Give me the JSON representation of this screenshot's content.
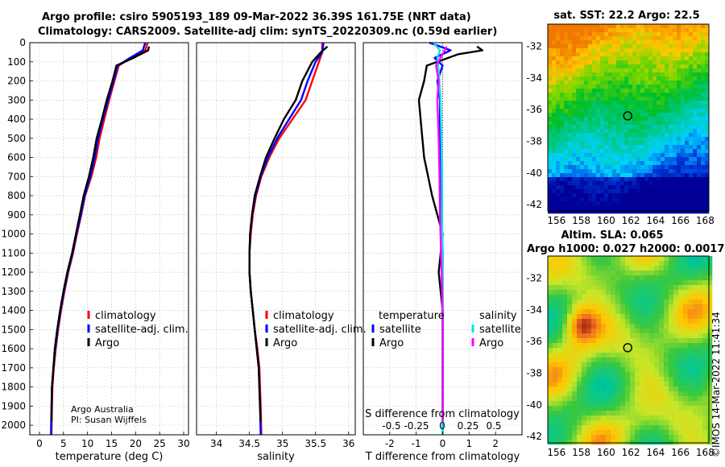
{
  "header": {
    "line1": "Argo profile: csiro 5905193_189 09-Mar-2022 36.39S 161.75E (NRT data)",
    "line2": "Climatology: CARS2009. Satellite-adj clim: synTS_20220309.nc (0.59d earlier)"
  },
  "colors": {
    "climatology": "#ff0000",
    "satellite_adj": "#0000ff",
    "argo": "#000000",
    "sat_cyan": "#00e5ee",
    "argo_magenta": "#ff00ff",
    "grid": "#c8c8c8"
  },
  "depth_axis": {
    "ticks": [
      0,
      100,
      200,
      300,
      400,
      500,
      600,
      700,
      800,
      900,
      1000,
      1100,
      1200,
      1300,
      1400,
      1500,
      1600,
      1700,
      1800,
      1900,
      2000
    ],
    "range": [
      0,
      2050
    ]
  },
  "chart_data": [
    {
      "type": "line",
      "name": "temperature-profile",
      "xlabel": "temperature (deg C)",
      "xlim": [
        -2,
        31
      ],
      "xticks": [
        0,
        5,
        10,
        15,
        20,
        25,
        30
      ],
      "ylabel": "depth",
      "legend": [
        "climatology",
        "satellite-adj. clim.",
        "Argo"
      ],
      "annotation": [
        "Argo Australia",
        "PI: Susan Wijffels"
      ],
      "series": [
        {
          "name": "climatology",
          "color_key": "climatology",
          "x": [
            22.5,
            22.0,
            19.0,
            16.5,
            15.6,
            14.5,
            13.5,
            12.5,
            11.8,
            10.8,
            9.5,
            8.7,
            7.8,
            7.0,
            6.0,
            5.2,
            4.5,
            3.9,
            3.4,
            3.0,
            2.7,
            2.6,
            2.5
          ],
          "y": [
            0,
            40,
            80,
            120,
            200,
            300,
            400,
            500,
            600,
            700,
            800,
            900,
            1000,
            1100,
            1200,
            1300,
            1400,
            1500,
            1600,
            1700,
            1800,
            1900,
            2050
          ]
        },
        {
          "name": "satellite-adj. clim.",
          "color_key": "satellite_adj",
          "x": [
            22.0,
            21.5,
            18.8,
            16.3,
            15.4,
            14.3,
            13.2,
            12.2,
            11.5,
            10.6,
            9.4,
            8.6,
            7.7,
            6.9,
            5.9,
            5.1,
            4.4,
            3.8,
            3.3,
            2.9,
            2.6,
            2.5,
            2.4
          ],
          "y": [
            0,
            40,
            80,
            120,
            200,
            300,
            400,
            500,
            600,
            700,
            800,
            900,
            1000,
            1100,
            1200,
            1300,
            1400,
            1500,
            1600,
            1700,
            1800,
            1900,
            2050
          ]
        },
        {
          "name": "Argo",
          "color_key": "argo",
          "x": [
            22.8,
            22.6,
            19.5,
            16.0,
            15.2,
            14.0,
            13.0,
            11.9,
            11.2,
            10.3,
            9.2,
            8.4,
            7.6,
            6.8,
            5.8,
            5.0,
            4.3,
            3.7,
            3.2,
            2.9,
            2.6,
            2.5
          ],
          "y": [
            20,
            40,
            80,
            120,
            200,
            300,
            400,
            500,
            600,
            700,
            800,
            900,
            1000,
            1100,
            1200,
            1300,
            1400,
            1500,
            1600,
            1700,
            1800,
            1980
          ]
        }
      ]
    },
    {
      "type": "line",
      "name": "salinity-profile",
      "xlabel": "salinity",
      "xlim": [
        33.7,
        36.1
      ],
      "xticks": [
        34,
        34.5,
        35,
        35.5,
        36
      ],
      "legend": [
        "climatology",
        "satellite-adj. clim.",
        "Argo"
      ],
      "series": [
        {
          "name": "climatology",
          "color_key": "climatology",
          "x": [
            35.6,
            35.6,
            35.55,
            35.45,
            35.35,
            35.15,
            34.95,
            34.8,
            34.68,
            34.6,
            34.55,
            34.52,
            34.5,
            34.5,
            34.52,
            34.55,
            34.58,
            34.62,
            34.65,
            34.67,
            34.68
          ],
          "y": [
            0,
            50,
            100,
            200,
            300,
            400,
            500,
            600,
            700,
            800,
            900,
            1000,
            1100,
            1200,
            1300,
            1400,
            1500,
            1600,
            1700,
            1900,
            2050
          ]
        },
        {
          "name": "satellite-adj. clim.",
          "color_key": "satellite_adj",
          "x": [
            35.62,
            35.6,
            35.5,
            35.38,
            35.28,
            35.1,
            34.92,
            34.78,
            34.67,
            34.59,
            34.54,
            34.51,
            34.5,
            34.5,
            34.52,
            34.55,
            34.58,
            34.61,
            34.64,
            34.66,
            34.67
          ],
          "y": [
            0,
            50,
            100,
            200,
            300,
            400,
            500,
            600,
            700,
            800,
            900,
            1000,
            1100,
            1200,
            1300,
            1400,
            1500,
            1600,
            1700,
            1900,
            2050
          ]
        },
        {
          "name": "Argo",
          "color_key": "argo",
          "x": [
            35.68,
            35.58,
            35.45,
            35.3,
            35.2,
            35.02,
            34.88,
            34.75,
            34.66,
            34.58,
            34.54,
            34.51,
            34.5,
            34.5,
            34.52,
            34.55,
            34.58,
            34.61,
            34.64,
            34.66,
            34.67
          ],
          "y": [
            20,
            50,
            100,
            200,
            300,
            400,
            500,
            600,
            700,
            800,
            900,
            1000,
            1100,
            1200,
            1300,
            1400,
            1500,
            1600,
            1700,
            1900,
            1980
          ]
        }
      ]
    },
    {
      "type": "line",
      "name": "difference-profile",
      "xlabel": "T difference from climatology",
      "xlabel_top": "S difference from climatology",
      "xlim": [
        -3,
        3
      ],
      "xticks": [
        -2,
        -1,
        0,
        1,
        2
      ],
      "s_ticks": [
        "-0.5",
        "-0.25",
        "0",
        "0.25",
        "0.5"
      ],
      "legend_titles": [
        "temperature",
        "salinity"
      ],
      "legend": [
        "satellite",
        "Argo",
        "satellite",
        "Argo"
      ],
      "series": [
        {
          "name": "T satellite",
          "color_key": "satellite_adj",
          "x": [
            -0.5,
            0.3,
            -0.3,
            0.0,
            -0.2,
            -0.1,
            -0.1,
            -0.1,
            -0.05,
            0.0,
            0.0,
            0.0,
            0.0,
            0.0
          ],
          "y": [
            0,
            40,
            80,
            120,
            200,
            300,
            500,
            700,
            900,
            1100,
            1300,
            1500,
            1700,
            2050
          ]
        },
        {
          "name": "T Argo",
          "color_key": "argo",
          "x": [
            1.3,
            1.5,
            0.6,
            -0.6,
            -0.7,
            -0.9,
            -0.8,
            -0.7,
            -0.4,
            0.0,
            -0.15,
            0.0,
            0.0,
            0.0,
            0.0
          ],
          "y": [
            20,
            40,
            60,
            120,
            200,
            300,
            450,
            600,
            800,
            1000,
            1200,
            1400,
            1600,
            1800,
            1980
          ]
        },
        {
          "name": "S satellite",
          "color_key": "sat_cyan",
          "x": [
            -0.35,
            -0.1,
            -0.2,
            -0.15,
            -0.08,
            -0.05,
            -0.02,
            -0.02,
            -0.01,
            0.0,
            0.0,
            0.0,
            0.0
          ],
          "y": [
            0,
            40,
            80,
            150,
            300,
            500,
            700,
            900,
            1100,
            1300,
            1500,
            1700,
            2050
          ]
        },
        {
          "name": "S Argo",
          "color_key": "argo_magenta",
          "x": [
            0.15,
            0.0,
            -0.25,
            -0.15,
            -0.2,
            -0.15,
            -0.12,
            -0.1,
            -0.06,
            -0.02,
            0.0,
            0.0,
            0.0
          ],
          "y": [
            20,
            60,
            120,
            200,
            300,
            500,
            700,
            900,
            1100,
            1300,
            1500,
            1700,
            1980
          ]
        }
      ]
    },
    {
      "type": "heatmap",
      "name": "satellite-sst-map",
      "title": "sat. SST: 22.2 Argo: 22.5",
      "xlim": [
        155.3,
        168.3
      ],
      "ylim": [
        -42.4,
        -30.6
      ],
      "xticks": [
        156,
        158,
        160,
        162,
        164,
        166,
        168
      ],
      "yticks": [
        -32,
        -34,
        -36,
        -38,
        -40,
        -42
      ],
      "marker": {
        "lon": 161.75,
        "lat": -36.39
      }
    },
    {
      "type": "heatmap",
      "name": "altimetry-sla-map",
      "title": "Altim. SLA: 0.065",
      "subtitle": "Argo h1000: 0.027 h2000: 0.0017",
      "xlim": [
        155.3,
        168.3
      ],
      "ylim": [
        -42.4,
        -30.6
      ],
      "xticks": [
        156,
        158,
        160,
        162,
        164,
        166,
        168
      ],
      "yticks": [
        -32,
        -34,
        -36,
        -38,
        -40,
        -42
      ],
      "marker": {
        "lon": 161.75,
        "lat": -36.39
      }
    }
  ],
  "credit": "©IMOS 14-Mar-2022 11:41:34"
}
